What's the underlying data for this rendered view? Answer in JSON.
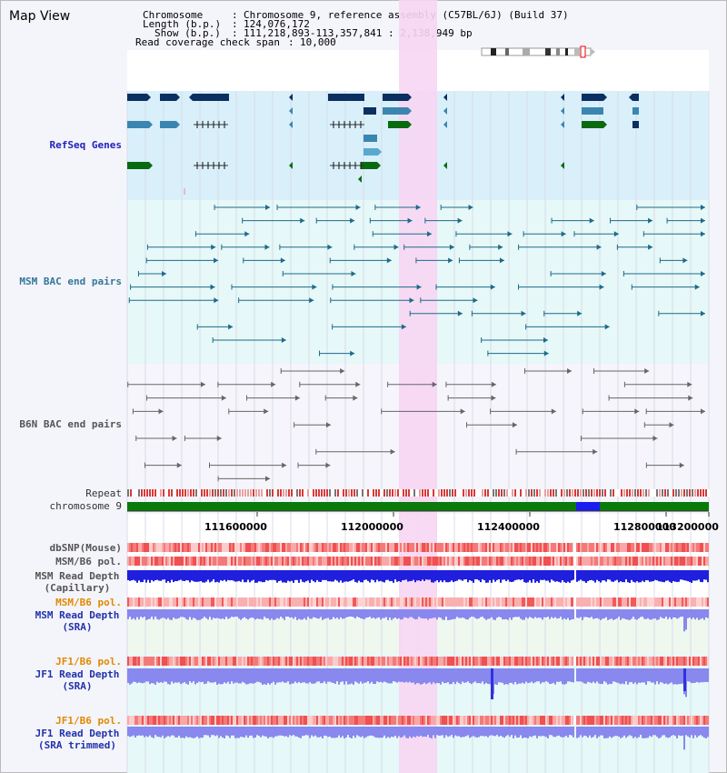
{
  "view_title": "Map View",
  "header": {
    "chrom_label": "Chromosome",
    "chrom_value": "Chromosome 9, reference assembly (C57BL/6J) (Build 37)",
    "length_label": "Length (b.p.)",
    "length_value": "124,076,172",
    "show_label": "Show (b.p.)",
    "show_value": "111,218,893-113,357,841 : 2,138,949 bp",
    "coverage_label": "Read coverage check span",
    "coverage_value": "10,000"
  },
  "tracks": {
    "refseq": "RefSeq Genes",
    "msm_bac": "MSM BAC end pairs",
    "b6n_bac": "B6N BAC end pairs",
    "repeat": "Repeat",
    "chromosome": "chromosome 9",
    "dbsnp": "dbSNP(Mouse)",
    "msm_b6_pol": "MSM/B6 pol.",
    "msm_read_depth_cap_1": "MSM Read Depth",
    "msm_read_depth_cap_2": "(Capillary)",
    "msm_b6_pol_sra": "MSM/B6 pol.",
    "msm_read_depth_sra_1": "MSM Read Depth",
    "msm_read_depth_sra_2": "(SRA)",
    "jf1_b6_pol": "JF1/B6 pol.",
    "jf1_read_depth_1": "JF1 Read Depth",
    "jf1_read_depth_2": "(SRA)",
    "jf1_b6_pol_2": "JF1/B6 pol.",
    "jf1_read_depth_trim_1": "JF1 Read Depth",
    "jf1_read_depth_trim_2": "(SRA trimmed)"
  },
  "axis_ticks": [
    "111600000",
    "112000000",
    "112400000",
    "112800000",
    "113200000"
  ],
  "colors": {
    "highlight": "#f7d6f3",
    "refseq_bg": "#d9f0fa",
    "msm_bg": "#e6f8f8",
    "depth_blue": "#1f1fdd",
    "depth_light": "#8888ee",
    "chrom_green": "#0a7a0a"
  }
}
